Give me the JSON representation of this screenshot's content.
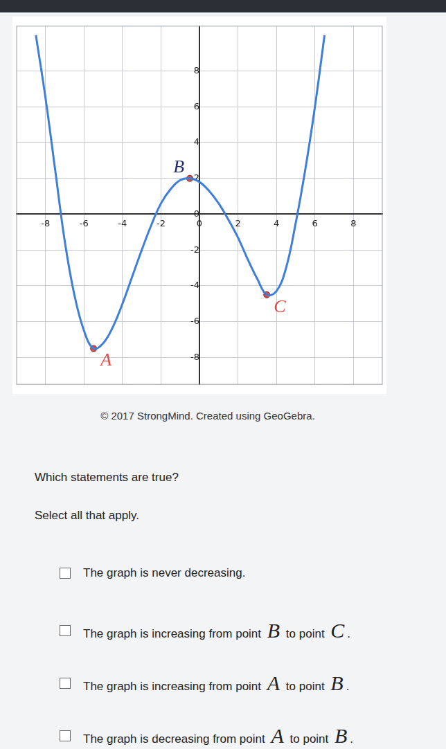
{
  "chart_data": {
    "type": "line",
    "x": [
      -8.5,
      -8,
      -7.5,
      -7,
      -6.5,
      -6,
      -5.5,
      -5,
      -4.5,
      -4,
      -3.5,
      -3,
      -2.5,
      -2,
      -1.5,
      -1,
      -0.5,
      0,
      0.5,
      1,
      1.5,
      2,
      2.5,
      3,
      3.5,
      4,
      4.5,
      5,
      5.5,
      6,
      6.5
    ],
    "values": [
      10,
      6.5,
      2.5,
      -1.5,
      -4.5,
      -6.5,
      -7.5,
      -7.2,
      -6.3,
      -5,
      -3.5,
      -2,
      -0.6,
      0.6,
      1.4,
      1.9,
      2,
      1.8,
      1.3,
      0.6,
      -0.3,
      -1.3,
      -2.5,
      -3.6,
      -4.5,
      -4.3,
      -3,
      -0.5,
      2.5,
      6,
      10
    ],
    "color": "#3f7fd8",
    "points": [
      {
        "label": "A",
        "x": -5.5,
        "y": -7.5
      },
      {
        "label": "B",
        "x": -0.5,
        "y": 2
      },
      {
        "label": "C",
        "x": 3.5,
        "y": -4.5
      }
    ],
    "point_color": "#dd4b44",
    "xlim": [
      -9.5,
      9.5
    ],
    "xticks": [
      -8,
      -6,
      -4,
      -2,
      0,
      2,
      4,
      6,
      8
    ],
    "ylim": [
      -9.5,
      10.5
    ],
    "yticks": [
      -8,
      -6,
      -4,
      -2,
      0,
      2,
      4,
      6,
      8
    ],
    "grid": true
  },
  "credit": "© 2017 StrongMind. Created using GeoGebra.",
  "question": "Which statements are true?",
  "instruction": "Select all that apply.",
  "options": [
    "The graph is never decreasing.",
    "The graph is increasing from point B to point C.",
    "The graph is increasing from point A to point B.",
    "The graph is decreasing from point A to point B."
  ]
}
